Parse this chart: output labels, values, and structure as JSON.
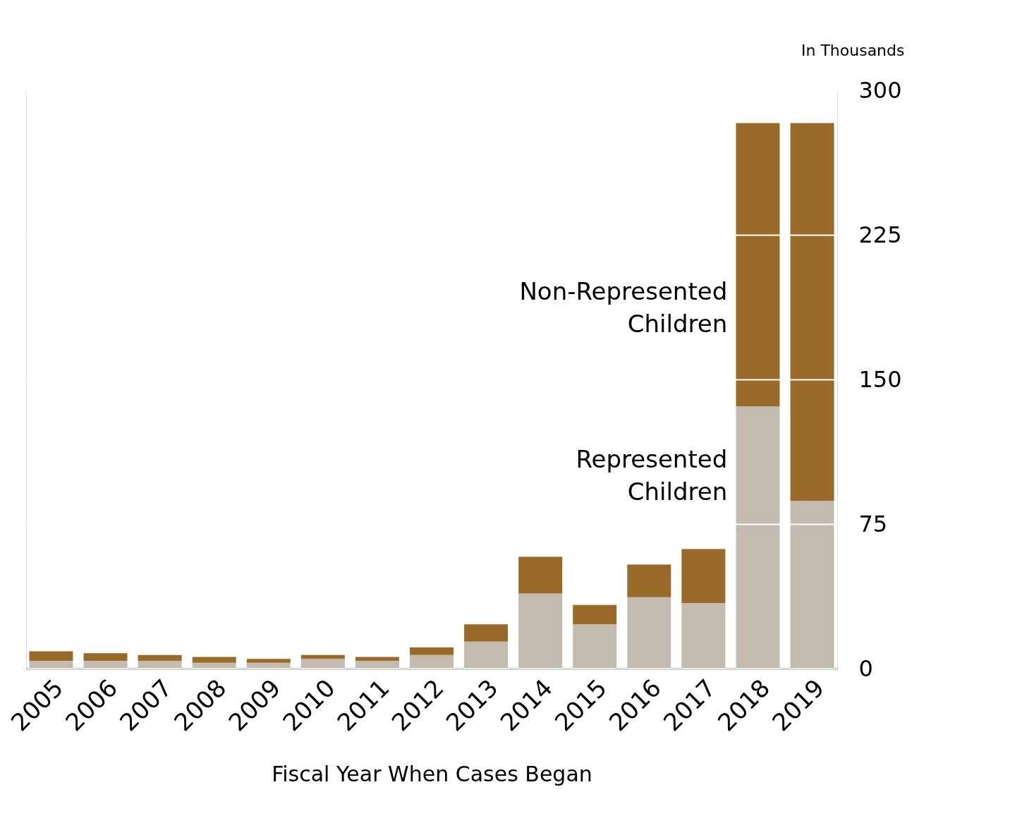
{
  "chart_data": {
    "type": "bar",
    "stacked": true,
    "categories": [
      "2005",
      "2006",
      "2007",
      "2008",
      "2009",
      "2010",
      "2011",
      "2012",
      "2013",
      "2014",
      "2015",
      "2016",
      "2017",
      "2018",
      "2019"
    ],
    "series": [
      {
        "name": "Represented Children",
        "color": "#c4bbb0",
        "values": [
          4,
          4,
          4,
          3,
          3,
          5,
          4,
          7,
          14,
          39,
          23,
          37,
          34,
          136,
          87
        ]
      },
      {
        "name": "Non-Represented Children",
        "color": "#9a6a2b",
        "values": [
          5,
          4,
          3,
          3,
          2,
          2,
          2,
          4,
          9,
          19,
          10,
          17,
          28,
          147,
          196
        ]
      }
    ],
    "xlabel": "Fiscal Year When Cases Began",
    "ylabel": "In Thousands",
    "ylim": [
      0,
      300
    ],
    "yticks": [
      0,
      75,
      150,
      225,
      300
    ],
    "grid": "y",
    "legend": false
  }
}
